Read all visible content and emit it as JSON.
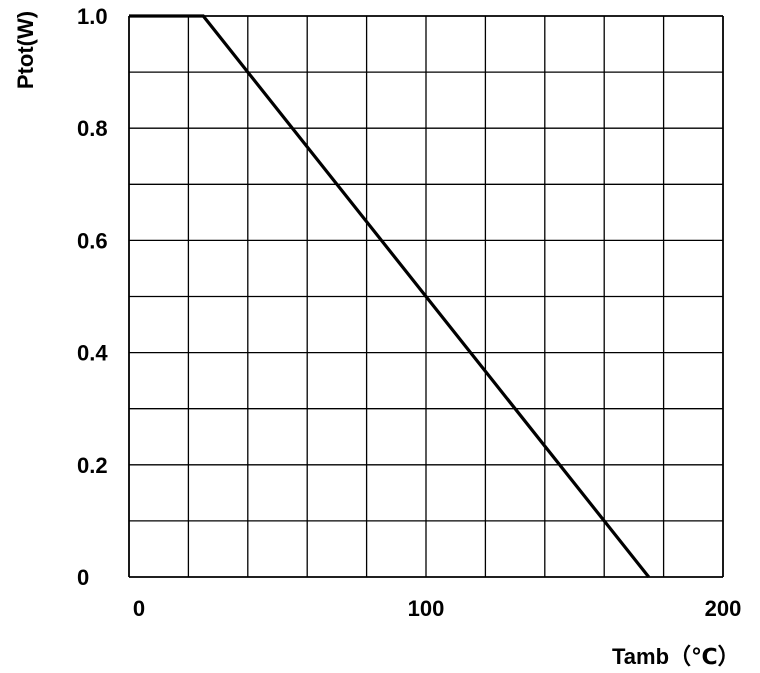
{
  "chart_data": {
    "type": "line",
    "title": "",
    "xlabel": "Tamb（℃）",
    "ylabel": "Ptot(W)",
    "xlim": [
      0,
      200
    ],
    "ylim": [
      0,
      1.0
    ],
    "x_tick_labels": [
      {
        "value": 0,
        "label": "0"
      },
      {
        "value": 100,
        "label": "100"
      },
      {
        "value": 200,
        "label": "200"
      }
    ],
    "y_tick_labels": [
      {
        "value": 0,
        "label": "0"
      },
      {
        "value": 0.2,
        "label": "0.2"
      },
      {
        "value": 0.4,
        "label": "0.4"
      },
      {
        "value": 0.6,
        "label": "0.6"
      },
      {
        "value": 0.8,
        "label": "0.8"
      },
      {
        "value": 1.0,
        "label": "1.0"
      }
    ],
    "x_grid_step": 20,
    "y_grid_step": 0.1,
    "grid": true,
    "series": [
      {
        "x": [
          0,
          25,
          175
        ],
        "y": [
          1.0,
          1.0,
          0
        ]
      }
    ],
    "colors": {
      "line": "#000000",
      "grid": "#000000",
      "background": "#ffffff"
    }
  }
}
